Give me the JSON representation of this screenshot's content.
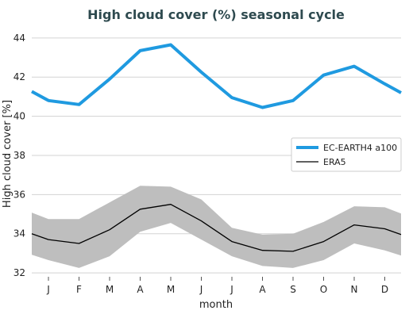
{
  "chart_data": {
    "type": "line",
    "title": "High cloud cover (%) seasonal cycle",
    "xlabel": "month",
    "ylabel": "High cloud cover [%]",
    "categories": [
      "J",
      "F",
      "M",
      "A",
      "M",
      "J",
      "J",
      "A",
      "S",
      "O",
      "N",
      "D"
    ],
    "ylim": [
      31.8,
      44.6
    ],
    "yticks": [
      32,
      34,
      36,
      38,
      40,
      42,
      44
    ],
    "grid": "horizontal",
    "legend_position": "center-right",
    "series": [
      {
        "name": "EC-EARTH4 a100",
        "color": "#1f9ae0",
        "values": [
          40.8,
          40.6,
          41.9,
          43.35,
          43.65,
          42.25,
          40.95,
          40.45,
          40.8,
          42.1,
          42.55,
          41.65
        ]
      },
      {
        "name": "ERA5",
        "color": "#000000",
        "values": [
          33.7,
          33.5,
          34.2,
          35.25,
          35.5,
          34.65,
          33.6,
          33.15,
          33.1,
          33.6,
          34.45,
          34.25
        ],
        "band_lower": [
          32.65,
          32.25,
          32.85,
          34.1,
          34.55,
          33.7,
          32.85,
          32.35,
          32.25,
          32.65,
          33.5,
          33.15
        ],
        "band_upper": [
          34.75,
          34.75,
          35.6,
          36.45,
          36.4,
          35.75,
          34.3,
          33.95,
          34.0,
          34.6,
          35.4,
          35.35
        ],
        "band_color": "#bebebe"
      }
    ]
  }
}
